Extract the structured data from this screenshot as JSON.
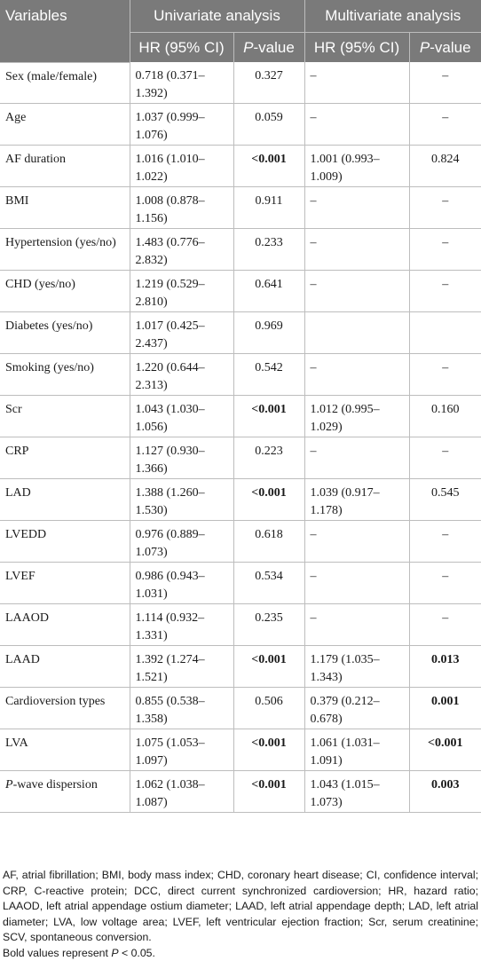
{
  "header": {
    "variables": "Variables",
    "univariate": "Univariate analysis",
    "multivariate": "Multivariate analysis",
    "hr_ci": "HR (95% CI)",
    "p_italic": "P",
    "p_suffix": "-value"
  },
  "rows": [
    {
      "var": "Sex (male/female)",
      "hr1": "0.718 (0.371–",
      "hr2": "1.392)",
      "p": "0.327",
      "p_bold": false,
      "mhr1": "–",
      "mhr2": "",
      "mp": "–",
      "mp_bold": false
    },
    {
      "var": "Age",
      "hr1": "1.037 (0.999–",
      "hr2": "1.076)",
      "p": "0.059",
      "p_bold": false,
      "mhr1": "–",
      "mhr2": "",
      "mp": "–",
      "mp_bold": false
    },
    {
      "var": "AF duration",
      "hr1": "1.016 (1.010–",
      "hr2": "1.022)",
      "p": "<0.001",
      "p_bold": true,
      "mhr1": "1.001 (0.993–",
      "mhr2": "1.009)",
      "mp": "0.824",
      "mp_bold": false
    },
    {
      "var": "BMI",
      "hr1": "1.008 (0.878–",
      "hr2": "1.156)",
      "p": "0.911",
      "p_bold": false,
      "mhr1": "–",
      "mhr2": "",
      "mp": "–",
      "mp_bold": false
    },
    {
      "var": "Hypertension (yes/no)",
      "hr1": "1.483 (0.776–",
      "hr2": "2.832)",
      "p": "0.233",
      "p_bold": false,
      "mhr1": "–",
      "mhr2": "",
      "mp": "–",
      "mp_bold": false
    },
    {
      "var": "CHD (yes/no)",
      "hr1": "1.219 (0.529–",
      "hr2": "2.810)",
      "p": "0.641",
      "p_bold": false,
      "mhr1": "–",
      "mhr2": "",
      "mp": "–",
      "mp_bold": false
    },
    {
      "var": "Diabetes (yes/no)",
      "hr1": "1.017 (0.425–",
      "hr2": "2.437)",
      "p": "0.969",
      "p_bold": false,
      "mhr1": "",
      "mhr2": "",
      "mp": "",
      "mp_bold": false
    },
    {
      "var": "Smoking (yes/no)",
      "hr1": "1.220 (0.644–",
      "hr2": "2.313)",
      "p": "0.542",
      "p_bold": false,
      "mhr1": "–",
      "mhr2": "",
      "mp": "–",
      "mp_bold": false
    },
    {
      "var": "Scr",
      "hr1": "1.043 (1.030–",
      "hr2": "1.056)",
      "p": "<0.001",
      "p_bold": true,
      "mhr1": "1.012 (0.995–",
      "mhr2": "1.029)",
      "mp": "0.160",
      "mp_bold": false
    },
    {
      "var": "CRP",
      "hr1": "1.127 (0.930–",
      "hr2": "1.366)",
      "p": "0.223",
      "p_bold": false,
      "mhr1": "–",
      "mhr2": "",
      "mp": "–",
      "mp_bold": false
    },
    {
      "var": "LAD",
      "hr1": "1.388 (1.260–",
      "hr2": "1.530)",
      "p": "<0.001",
      "p_bold": true,
      "mhr1": "1.039 (0.917–",
      "mhr2": "1.178)",
      "mp": "0.545",
      "mp_bold": false
    },
    {
      "var": "LVEDD",
      "hr1": "0.976 (0.889–",
      "hr2": "1.073)",
      "p": "0.618",
      "p_bold": false,
      "mhr1": "–",
      "mhr2": "",
      "mp": "–",
      "mp_bold": false
    },
    {
      "var": "LVEF",
      "hr1": "0.986 (0.943–",
      "hr2": "1.031)",
      "p": "0.534",
      "p_bold": false,
      "mhr1": "–",
      "mhr2": "",
      "mp": "–",
      "mp_bold": false
    },
    {
      "var": "LAAOD",
      "hr1": "1.114 (0.932–",
      "hr2": "1.331)",
      "p": "0.235",
      "p_bold": false,
      "mhr1": "–",
      "mhr2": "",
      "mp": "–",
      "mp_bold": false
    },
    {
      "var": "LAAD",
      "hr1": "1.392 (1.274–",
      "hr2": "1.521)",
      "p": "<0.001",
      "p_bold": true,
      "mhr1": "1.179 (1.035–",
      "mhr2": "1.343)",
      "mp": "0.013",
      "mp_bold": true
    },
    {
      "var": "Cardioversion types",
      "hr1": "0.855 (0.538–",
      "hr2": "1.358)",
      "p": "0.506",
      "p_bold": false,
      "mhr1": "0.379 (0.212–",
      "mhr2": "0.678)",
      "mp": "0.001",
      "mp_bold": true
    },
    {
      "var": "LVA",
      "hr1": "1.075 (1.053–",
      "hr2": "1.097)",
      "p": "<0.001",
      "p_bold": true,
      "mhr1": "1.061 (1.031–",
      "mhr2": "1.091)",
      "mp": "<0.001",
      "mp_bold": true
    },
    {
      "var_italic": "P",
      "var": "-wave dispersion",
      "hr1": "1.062 (1.038–",
      "hr2": "1.087)",
      "p": "<0.001",
      "p_bold": true,
      "mhr1": "1.043 (1.015–",
      "mhr2": "1.073)",
      "mp": "0.003",
      "mp_bold": true
    }
  ],
  "footnote": {
    "abbrev": "AF, atrial fibrillation; BMI, body mass index; CHD, coronary heart disease; CI, confidence interval; CRP, C-reactive protein; DCC, direct current synchronized cardioversion; HR, hazard ratio; LAAOD, left atrial appendage ostium diameter; LAAD, left atrial appendage depth; LAD, left atrial diameter; LVA, low voltage area; LVEF, left ventricular ejection fraction; Scr, serum creatinine; SCV, spontaneous conversion.",
    "bold_note_prefix": "Bold values represent ",
    "bold_note_p": "P",
    "bold_note_suffix": " < 0.05."
  }
}
